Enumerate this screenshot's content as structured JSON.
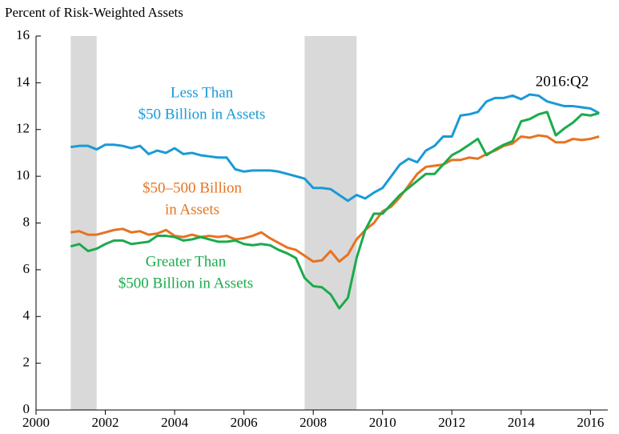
{
  "chart_data": {
    "type": "line",
    "y_axis_label": "Percent of Risk-Weighted Assets",
    "xlim": [
      2000,
      2016.5
    ],
    "xticks": [
      2000,
      2002,
      2004,
      2006,
      2008,
      2010,
      2012,
      2014,
      2016
    ],
    "ylim": [
      0,
      16
    ],
    "yticks": [
      0,
      2,
      4,
      6,
      8,
      10,
      12,
      14,
      16
    ],
    "shaded_periods": [
      [
        2001.0,
        2001.75
      ],
      [
        2007.75,
        2009.25
      ]
    ],
    "shade_color": "#d9d9d9",
    "x": [
      2001.0,
      2001.25,
      2001.5,
      2001.75,
      2002.0,
      2002.25,
      2002.5,
      2002.75,
      2003.0,
      2003.25,
      2003.5,
      2003.75,
      2004.0,
      2004.25,
      2004.5,
      2004.75,
      2005.0,
      2005.25,
      2005.5,
      2005.75,
      2006.0,
      2006.25,
      2006.5,
      2006.75,
      2007.0,
      2007.25,
      2007.5,
      2007.75,
      2008.0,
      2008.25,
      2008.5,
      2008.75,
      2009.0,
      2009.25,
      2009.5,
      2009.75,
      2010.0,
      2010.25,
      2010.5,
      2010.75,
      2011.0,
      2011.25,
      2011.5,
      2011.75,
      2012.0,
      2012.25,
      2012.5,
      2012.75,
      2013.0,
      2013.25,
      2013.5,
      2013.75,
      2014.0,
      2014.25,
      2014.5,
      2014.75,
      2015.0,
      2015.25,
      2015.5,
      2015.75,
      2016.0,
      2016.25
    ],
    "series": [
      {
        "name": "Less Than $50 Billion in Assets",
        "color": "#1a9ad6",
        "values": [
          11.25,
          11.3,
          11.3,
          11.15,
          11.35,
          11.35,
          11.3,
          11.2,
          11.3,
          10.95,
          11.1,
          11.0,
          11.2,
          10.95,
          11.0,
          10.9,
          10.85,
          10.8,
          10.8,
          10.3,
          10.2,
          10.25,
          10.25,
          10.25,
          10.2,
          10.1,
          10.0,
          9.9,
          9.5,
          9.5,
          9.45,
          9.2,
          8.95,
          9.2,
          9.05,
          9.3,
          9.5,
          10.0,
          10.5,
          10.75,
          10.6,
          11.1,
          11.3,
          11.7,
          11.7,
          12.6,
          12.65,
          12.75,
          13.2,
          13.35,
          13.35,
          13.45,
          13.3,
          13.5,
          13.45,
          13.2,
          13.1,
          13.0,
          13.0,
          12.95,
          12.9,
          12.7
        ]
      },
      {
        "name": "$50–500 Billion in Assets",
        "color": "#e67322",
        "values": [
          7.6,
          7.65,
          7.5,
          7.5,
          7.6,
          7.7,
          7.75,
          7.6,
          7.65,
          7.5,
          7.55,
          7.7,
          7.45,
          7.4,
          7.5,
          7.4,
          7.45,
          7.4,
          7.45,
          7.3,
          7.35,
          7.45,
          7.6,
          7.35,
          7.15,
          6.95,
          6.85,
          6.6,
          6.35,
          6.4,
          6.8,
          6.35,
          6.65,
          7.3,
          7.7,
          8.0,
          8.5,
          8.7,
          9.1,
          9.6,
          10.1,
          10.4,
          10.45,
          10.5,
          10.7,
          10.7,
          10.8,
          10.75,
          10.95,
          11.1,
          11.3,
          11.4,
          11.7,
          11.65,
          11.75,
          11.7,
          11.45,
          11.45,
          11.6,
          11.55,
          11.6,
          11.7
        ]
      },
      {
        "name": "Greater Than $500 Billion in Assets",
        "color": "#1aab4b",
        "values": [
          7.0,
          7.1,
          6.8,
          6.9,
          7.1,
          7.25,
          7.25,
          7.1,
          7.15,
          7.2,
          7.45,
          7.45,
          7.4,
          7.25,
          7.3,
          7.4,
          7.3,
          7.2,
          7.2,
          7.25,
          7.1,
          7.05,
          7.1,
          7.05,
          6.85,
          6.7,
          6.5,
          5.65,
          5.3,
          5.25,
          4.95,
          4.35,
          4.8,
          6.5,
          7.7,
          8.4,
          8.4,
          8.8,
          9.2,
          9.5,
          9.8,
          10.1,
          10.1,
          10.5,
          10.9,
          11.1,
          11.35,
          11.6,
          10.9,
          11.15,
          11.35,
          11.5,
          12.35,
          12.45,
          12.65,
          12.75,
          11.75,
          12.05,
          12.3,
          12.65,
          12.6,
          12.7
        ]
      }
    ],
    "annotations": [
      {
        "lines": [
          "Less Than",
          "$50 Billion in Assets"
        ],
        "series": 0
      },
      {
        "lines": [
          "$50–500 Billion",
          "in Assets"
        ],
        "series": 1
      },
      {
        "lines": [
          "Greater Than",
          "$500 Billion in Assets"
        ],
        "series": 2
      },
      {
        "lines": [
          "2016:Q2"
        ]
      }
    ]
  }
}
